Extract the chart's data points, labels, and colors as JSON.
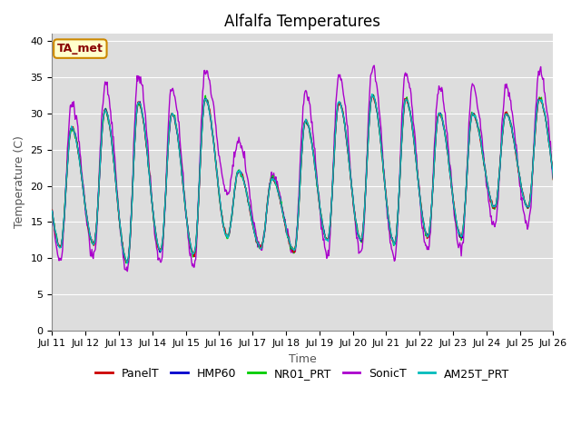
{
  "title": "Alfalfa Temperatures",
  "xlabel": "Time",
  "ylabel": "Temperature (C)",
  "annotation": "TA_met",
  "ylim": [
    0,
    41
  ],
  "yticks": [
    0,
    5,
    10,
    15,
    20,
    25,
    30,
    35,
    40
  ],
  "x_labels": [
    "Jul 11",
    "Jul 12",
    "Jul 13",
    "Jul 14",
    "Jul 15",
    "Jul 16",
    "Jul 17",
    "Jul 18",
    "Jul 19",
    "Jul 20",
    "Jul 21",
    "Jul 22",
    "Jul 23",
    "Jul 24",
    "Jul 25",
    "Jul 26"
  ],
  "n_days": 15,
  "n_points": 720,
  "plot_bg_color": "#dddddd",
  "fig_bg_color": "#ffffff",
  "legend": [
    {
      "label": "PanelT",
      "color": "#cc0000"
    },
    {
      "label": "HMP60",
      "color": "#0000cc"
    },
    {
      "label": "NR01_PRT",
      "color": "#00cc00"
    },
    {
      "label": "SonicT",
      "color": "#aa00cc"
    },
    {
      "label": "AM25T_PRT",
      "color": "#00bbbb"
    }
  ],
  "title_fontsize": 12,
  "axis_label_fontsize": 9,
  "tick_fontsize": 8,
  "legend_fontsize": 9,
  "annotation_fontsize": 9,
  "annotation_bg": "#ffffcc",
  "annotation_border": "#cc8800",
  "annotation_text_color": "#880000"
}
